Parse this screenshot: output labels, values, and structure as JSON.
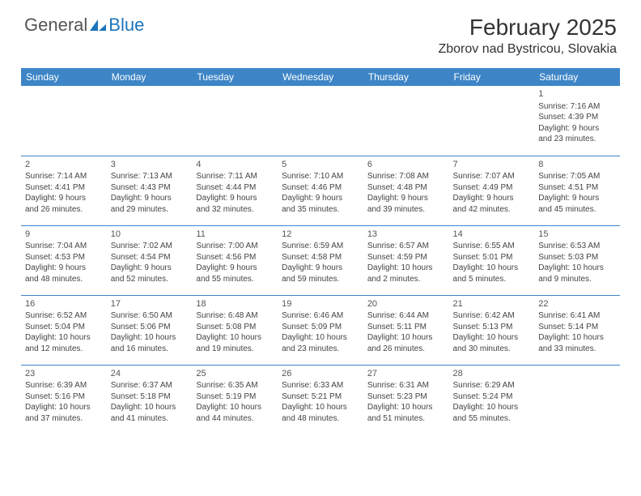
{
  "logo": {
    "text1": "General",
    "text2": "Blue"
  },
  "title": "February 2025",
  "location": "Zborov nad Bystricou, Slovakia",
  "colors": {
    "header_bg": "#3d85c6",
    "header_text": "#ffffff",
    "row_divider": "#3d85c6",
    "logo_gray": "#555555",
    "logo_blue": "#1c75bc",
    "body_text": "#444444",
    "background": "#ffffff"
  },
  "typography": {
    "title_fontsize": 28,
    "location_fontsize": 16,
    "header_fontsize": 12,
    "cell_fontsize": 10,
    "daynum_fontsize": 11
  },
  "weekdays": [
    "Sunday",
    "Monday",
    "Tuesday",
    "Wednesday",
    "Thursday",
    "Friday",
    "Saturday"
  ],
  "weeks": [
    [
      null,
      null,
      null,
      null,
      null,
      null,
      {
        "n": "1",
        "sr": "Sunrise: 7:16 AM",
        "ss": "Sunset: 4:39 PM",
        "dl1": "Daylight: 9 hours",
        "dl2": "and 23 minutes."
      }
    ],
    [
      {
        "n": "2",
        "sr": "Sunrise: 7:14 AM",
        "ss": "Sunset: 4:41 PM",
        "dl1": "Daylight: 9 hours",
        "dl2": "and 26 minutes."
      },
      {
        "n": "3",
        "sr": "Sunrise: 7:13 AM",
        "ss": "Sunset: 4:43 PM",
        "dl1": "Daylight: 9 hours",
        "dl2": "and 29 minutes."
      },
      {
        "n": "4",
        "sr": "Sunrise: 7:11 AM",
        "ss": "Sunset: 4:44 PM",
        "dl1": "Daylight: 9 hours",
        "dl2": "and 32 minutes."
      },
      {
        "n": "5",
        "sr": "Sunrise: 7:10 AM",
        "ss": "Sunset: 4:46 PM",
        "dl1": "Daylight: 9 hours",
        "dl2": "and 35 minutes."
      },
      {
        "n": "6",
        "sr": "Sunrise: 7:08 AM",
        "ss": "Sunset: 4:48 PM",
        "dl1": "Daylight: 9 hours",
        "dl2": "and 39 minutes."
      },
      {
        "n": "7",
        "sr": "Sunrise: 7:07 AM",
        "ss": "Sunset: 4:49 PM",
        "dl1": "Daylight: 9 hours",
        "dl2": "and 42 minutes."
      },
      {
        "n": "8",
        "sr": "Sunrise: 7:05 AM",
        "ss": "Sunset: 4:51 PM",
        "dl1": "Daylight: 9 hours",
        "dl2": "and 45 minutes."
      }
    ],
    [
      {
        "n": "9",
        "sr": "Sunrise: 7:04 AM",
        "ss": "Sunset: 4:53 PM",
        "dl1": "Daylight: 9 hours",
        "dl2": "and 48 minutes."
      },
      {
        "n": "10",
        "sr": "Sunrise: 7:02 AM",
        "ss": "Sunset: 4:54 PM",
        "dl1": "Daylight: 9 hours",
        "dl2": "and 52 minutes."
      },
      {
        "n": "11",
        "sr": "Sunrise: 7:00 AM",
        "ss": "Sunset: 4:56 PM",
        "dl1": "Daylight: 9 hours",
        "dl2": "and 55 minutes."
      },
      {
        "n": "12",
        "sr": "Sunrise: 6:59 AM",
        "ss": "Sunset: 4:58 PM",
        "dl1": "Daylight: 9 hours",
        "dl2": "and 59 minutes."
      },
      {
        "n": "13",
        "sr": "Sunrise: 6:57 AM",
        "ss": "Sunset: 4:59 PM",
        "dl1": "Daylight: 10 hours",
        "dl2": "and 2 minutes."
      },
      {
        "n": "14",
        "sr": "Sunrise: 6:55 AM",
        "ss": "Sunset: 5:01 PM",
        "dl1": "Daylight: 10 hours",
        "dl2": "and 5 minutes."
      },
      {
        "n": "15",
        "sr": "Sunrise: 6:53 AM",
        "ss": "Sunset: 5:03 PM",
        "dl1": "Daylight: 10 hours",
        "dl2": "and 9 minutes."
      }
    ],
    [
      {
        "n": "16",
        "sr": "Sunrise: 6:52 AM",
        "ss": "Sunset: 5:04 PM",
        "dl1": "Daylight: 10 hours",
        "dl2": "and 12 minutes."
      },
      {
        "n": "17",
        "sr": "Sunrise: 6:50 AM",
        "ss": "Sunset: 5:06 PM",
        "dl1": "Daylight: 10 hours",
        "dl2": "and 16 minutes."
      },
      {
        "n": "18",
        "sr": "Sunrise: 6:48 AM",
        "ss": "Sunset: 5:08 PM",
        "dl1": "Daylight: 10 hours",
        "dl2": "and 19 minutes."
      },
      {
        "n": "19",
        "sr": "Sunrise: 6:46 AM",
        "ss": "Sunset: 5:09 PM",
        "dl1": "Daylight: 10 hours",
        "dl2": "and 23 minutes."
      },
      {
        "n": "20",
        "sr": "Sunrise: 6:44 AM",
        "ss": "Sunset: 5:11 PM",
        "dl1": "Daylight: 10 hours",
        "dl2": "and 26 minutes."
      },
      {
        "n": "21",
        "sr": "Sunrise: 6:42 AM",
        "ss": "Sunset: 5:13 PM",
        "dl1": "Daylight: 10 hours",
        "dl2": "and 30 minutes."
      },
      {
        "n": "22",
        "sr": "Sunrise: 6:41 AM",
        "ss": "Sunset: 5:14 PM",
        "dl1": "Daylight: 10 hours",
        "dl2": "and 33 minutes."
      }
    ],
    [
      {
        "n": "23",
        "sr": "Sunrise: 6:39 AM",
        "ss": "Sunset: 5:16 PM",
        "dl1": "Daylight: 10 hours",
        "dl2": "and 37 minutes."
      },
      {
        "n": "24",
        "sr": "Sunrise: 6:37 AM",
        "ss": "Sunset: 5:18 PM",
        "dl1": "Daylight: 10 hours",
        "dl2": "and 41 minutes."
      },
      {
        "n": "25",
        "sr": "Sunrise: 6:35 AM",
        "ss": "Sunset: 5:19 PM",
        "dl1": "Daylight: 10 hours",
        "dl2": "and 44 minutes."
      },
      {
        "n": "26",
        "sr": "Sunrise: 6:33 AM",
        "ss": "Sunset: 5:21 PM",
        "dl1": "Daylight: 10 hours",
        "dl2": "and 48 minutes."
      },
      {
        "n": "27",
        "sr": "Sunrise: 6:31 AM",
        "ss": "Sunset: 5:23 PM",
        "dl1": "Daylight: 10 hours",
        "dl2": "and 51 minutes."
      },
      {
        "n": "28",
        "sr": "Sunrise: 6:29 AM",
        "ss": "Sunset: 5:24 PM",
        "dl1": "Daylight: 10 hours",
        "dl2": "and 55 minutes."
      },
      null
    ]
  ]
}
